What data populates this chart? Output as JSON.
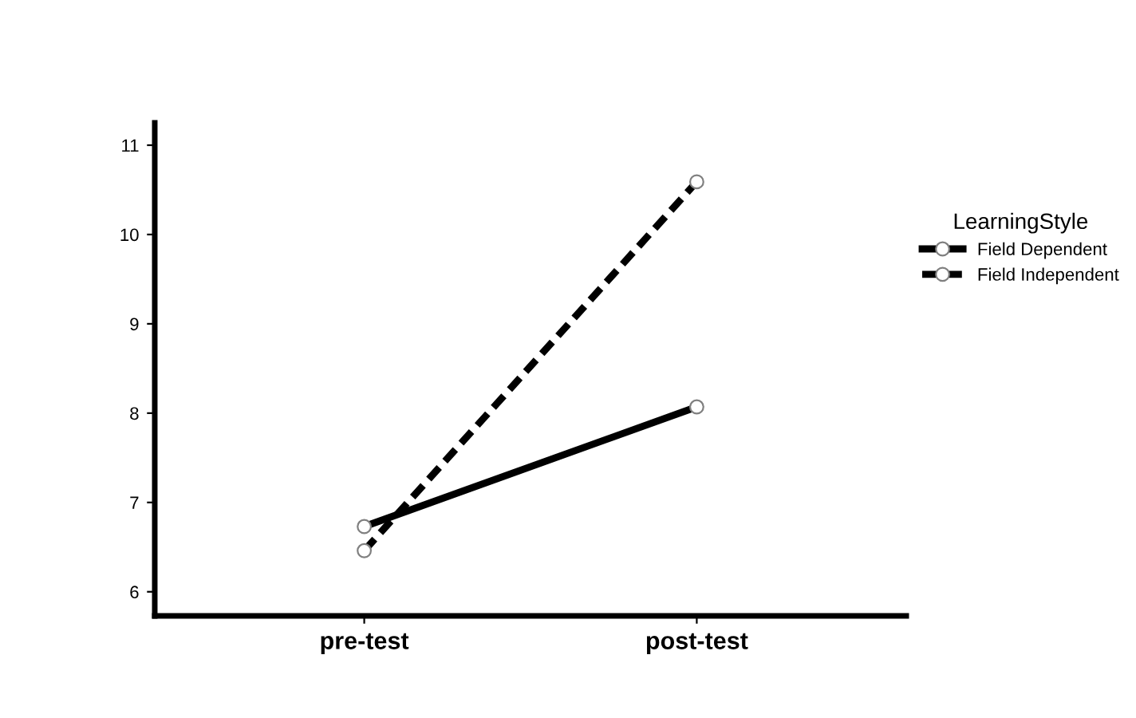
{
  "chart_data": {
    "type": "line",
    "categories": [
      "pre-test",
      "post-test"
    ],
    "legend_title": "LearningStyle",
    "legend": "right",
    "marker": "circle",
    "grid": false,
    "ylim": [
      5.73,
      11.25
    ],
    "yticks": [
      6,
      7,
      8,
      9,
      10,
      11
    ],
    "series": [
      {
        "name": "Field Dependent",
        "color": "#000000",
        "line_style": "solid",
        "values": [
          6.73,
          8.07
        ]
      },
      {
        "name": "Field Independent",
        "color": "#000000",
        "line_style": "dashed",
        "values": [
          6.46,
          10.59
        ]
      }
    ]
  }
}
